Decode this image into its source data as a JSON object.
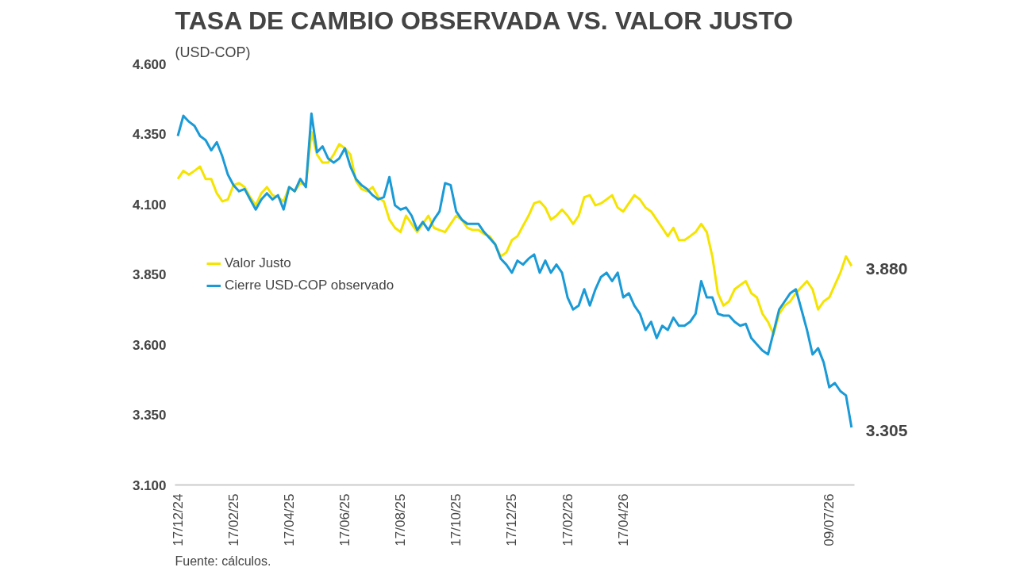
{
  "chart_data": {
    "type": "line",
    "title": "TASA DE CAMBIO OBSERVADA VS. VALOR JUSTO",
    "subtitle": "(USD-COP)",
    "categories": [
      "17/12/24",
      null,
      null,
      null,
      null,
      null,
      null,
      null,
      null,
      null,
      "17/02/25",
      null,
      null,
      null,
      null,
      null,
      null,
      null,
      null,
      null,
      "17/04/25",
      null,
      null,
      null,
      null,
      null,
      null,
      null,
      null,
      null,
      "17/06/25",
      null,
      null,
      null,
      null,
      null,
      null,
      null,
      null,
      null,
      "17/08/25",
      null,
      null,
      null,
      null,
      null,
      null,
      null,
      null,
      null,
      "17/10/25",
      null,
      null,
      null,
      null,
      null,
      null,
      null,
      null,
      null,
      "17/12/25",
      null,
      null,
      null,
      null,
      null,
      null,
      null,
      null,
      null,
      "17/02/26",
      null,
      null,
      null,
      null,
      null,
      null,
      null,
      null,
      null,
      "17/04/26",
      null,
      null,
      null,
      null,
      null,
      null,
      null,
      null,
      null,
      null,
      null,
      null,
      null,
      null,
      null,
      null,
      null,
      null,
      null,
      null,
      null,
      null,
      null,
      null,
      null,
      null,
      null,
      null,
      null,
      null,
      null,
      null,
      null,
      null,
      null,
      null,
      "09/07/26",
      null,
      null,
      null,
      null
    ],
    "series": [
      {
        "name": "Valor Justo",
        "color": "#f5e400",
        "values": [
          4190,
          4219,
          4205,
          4219,
          4234,
          4190,
          4190,
          4139,
          4110,
          4117,
          4168,
          4175,
          4161,
          4125,
          4096,
          4139,
          4161,
          4132,
          4125,
          4110,
          4161,
          4146,
          4175,
          4168,
          4357,
          4277,
          4248,
          4248,
          4277,
          4314,
          4299,
          4277,
          4183,
          4154,
          4146,
          4161,
          4125,
          4110,
          4045,
          4016,
          4001,
          4059,
          4030,
          4001,
          4030,
          4059,
          4016,
          4008,
          4001,
          4030,
          4059,
          4045,
          4016,
          4008,
          4008,
          3994,
          3986,
          3957,
          3914,
          3928,
          3972,
          3986,
          4023,
          4059,
          4103,
          4110,
          4088,
          4045,
          4059,
          4081,
          4059,
          4030,
          4059,
          4125,
          4132,
          4096,
          4103,
          4117,
          4132,
          4088,
          4074,
          4103,
          4132,
          4117,
          4088,
          4074,
          4045,
          4016,
          3986,
          4016,
          3972,
          3972,
          3986,
          4001,
          4030,
          4001,
          3914,
          3783,
          3739,
          3754,
          3797,
          3812,
          3826,
          3783,
          3768,
          3710,
          3681,
          3637,
          3710,
          3739,
          3754,
          3783,
          3805,
          3826,
          3797,
          3725,
          3754,
          3768,
          3812,
          3856,
          3914,
          3880
        ],
        "value_labels": [
          null,
          null,
          null,
          null,
          null,
          null,
          null,
          null,
          null,
          null,
          null,
          null,
          null,
          null,
          null,
          null,
          null,
          null,
          null,
          null,
          null,
          null,
          null,
          null,
          null,
          null,
          null,
          null,
          null,
          null,
          null,
          null,
          null,
          null,
          null,
          null,
          null,
          null,
          null,
          null,
          null,
          null,
          null,
          null,
          null,
          null,
          null,
          null,
          null,
          null,
          null,
          null,
          null,
          null,
          null,
          null,
          null,
          null,
          null,
          null,
          null,
          null,
          null,
          null,
          null,
          null,
          null,
          null,
          null,
          null,
          null,
          null,
          null,
          null,
          null,
          null,
          null,
          null,
          null,
          null,
          null,
          null,
          null,
          null,
          null,
          null,
          null,
          null,
          null,
          null,
          null,
          null,
          null,
          null,
          null,
          null,
          null,
          null,
          null,
          null,
          null,
          null,
          null,
          null,
          null,
          null,
          null,
          null,
          null,
          null,
          null,
          null,
          null,
          null,
          null,
          null,
          null,
          null,
          null,
          null,
          null,
          "3.880"
        ]
      },
      {
        "name": "Cierre USD-COP observado",
        "color": "#1a9ad6",
        "values": [
          4343,
          4415,
          4394,
          4379,
          4343,
          4328,
          4292,
          4321,
          4270,
          4205,
          4168,
          4146,
          4154,
          4117,
          4081,
          4117,
          4139,
          4117,
          4132,
          4081,
          4161,
          4146,
          4190,
          4161,
          4423,
          4285,
          4306,
          4263,
          4248,
          4263,
          4299,
          4234,
          4190,
          4168,
          4154,
          4132,
          4117,
          4125,
          4197,
          4096,
          4081,
          4088,
          4059,
          4008,
          4037,
          4008,
          4045,
          4074,
          4175,
          4168,
          4074,
          4045,
          4030,
          4030,
          4030,
          4001,
          3979,
          3957,
          3906,
          3885,
          3856,
          3899,
          3885,
          3906,
          3921,
          3856,
          3899,
          3856,
          3885,
          3856,
          3768,
          3725,
          3739,
          3797,
          3739,
          3797,
          3841,
          3856,
          3826,
          3856,
          3768,
          3783,
          3739,
          3710,
          3652,
          3681,
          3623,
          3667,
          3652,
          3696,
          3667,
          3667,
          3681,
          3710,
          3826,
          3768,
          3768,
          3710,
          3703,
          3703,
          3681,
          3667,
          3674,
          3623,
          3601,
          3579,
          3565,
          3645,
          3725,
          3754,
          3783,
          3797,
          3725,
          3652,
          3565,
          3587,
          3536,
          3448,
          3463,
          3434,
          3419,
          3305
        ],
        "value_labels": [
          null,
          null,
          null,
          null,
          null,
          null,
          null,
          null,
          null,
          null,
          null,
          null,
          null,
          null,
          null,
          null,
          null,
          null,
          null,
          null,
          null,
          null,
          null,
          null,
          null,
          null,
          null,
          null,
          null,
          null,
          null,
          null,
          null,
          null,
          null,
          null,
          null,
          null,
          null,
          null,
          null,
          null,
          null,
          null,
          null,
          null,
          null,
          null,
          null,
          null,
          null,
          null,
          null,
          null,
          null,
          null,
          null,
          null,
          null,
          null,
          null,
          null,
          null,
          null,
          null,
          null,
          null,
          null,
          null,
          null,
          null,
          null,
          null,
          null,
          null,
          null,
          null,
          null,
          null,
          null,
          null,
          null,
          null,
          null,
          null,
          null,
          null,
          null,
          null,
          null,
          null,
          null,
          null,
          null,
          null,
          null,
          null,
          null,
          null,
          null,
          null,
          null,
          null,
          null,
          null,
          null,
          null,
          null,
          null,
          null,
          null,
          null,
          null,
          null,
          null,
          null,
          null,
          null,
          null,
          null,
          null,
          "3.305"
        ]
      }
    ],
    "ylim": [
      3100,
      4600
    ],
    "yticks": [
      {
        "value": 3100,
        "label": "3.100"
      },
      {
        "value": 3350,
        "label": "3.350"
      },
      {
        "value": 3600,
        "label": "3.600"
      },
      {
        "value": 3850,
        "label": "3.850"
      },
      {
        "value": 4100,
        "label": "4.100"
      },
      {
        "value": 4350,
        "label": "4.350"
      },
      {
        "value": 4600,
        "label": "4.600"
      }
    ],
    "grid": false,
    "legend": "left",
    "marker": "none",
    "line_style": "solid",
    "annotations": [
      "Fuente: cálculos."
    ]
  }
}
